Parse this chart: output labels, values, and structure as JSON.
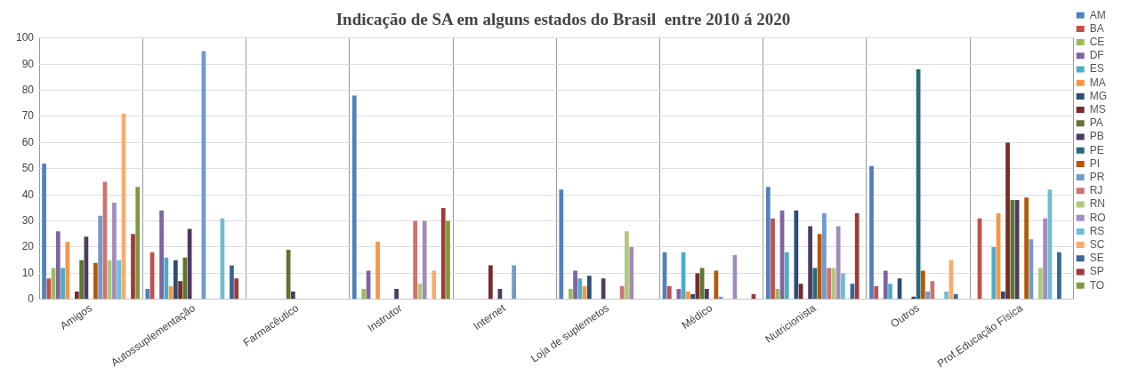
{
  "chart_data": {
    "type": "bar",
    "title": "Indicação de SA em alguns estados do Brasil  entre 2010 á 2020",
    "categories": [
      "Amigos",
      "Autossuplementação",
      "Farmacêutico",
      "Instrutor",
      "Internet",
      "Loja de suplemetos",
      "Médico",
      "Nutricionista",
      "Outros",
      "Prof.Educação Física"
    ],
    "ylim": [
      0,
      100
    ],
    "yticks": [
      0,
      10,
      20,
      30,
      40,
      50,
      60,
      70,
      80,
      90,
      100
    ],
    "grid": true,
    "legend": "right",
    "series": [
      {
        "name": "AM",
        "color": "#4f81bd",
        "values": [
          52,
          4,
          0,
          78,
          0,
          42,
          18,
          43,
          51,
          0
        ]
      },
      {
        "name": "BA",
        "color": "#c0504d",
        "values": [
          8,
          18,
          0,
          0,
          0,
          0,
          5,
          31,
          5,
          31
        ]
      },
      {
        "name": "CE",
        "color": "#9bbb59",
        "values": [
          12,
          0,
          0,
          4,
          0,
          4,
          0,
          4,
          0,
          0
        ]
      },
      {
        "name": "DF",
        "color": "#8064a2",
        "values": [
          26,
          34,
          0,
          11,
          0,
          11,
          4,
          34,
          11,
          0
        ]
      },
      {
        "name": "ES",
        "color": "#4bacc6",
        "values": [
          12,
          16,
          0,
          0,
          0,
          8,
          18,
          18,
          6,
          20
        ]
      },
      {
        "name": "MA",
        "color": "#f79646",
        "values": [
          22,
          5,
          0,
          22,
          0,
          5,
          3,
          0,
          0,
          33
        ]
      },
      {
        "name": "MG",
        "color": "#2c4d75",
        "values": [
          0,
          15,
          0,
          0,
          0,
          9,
          2,
          34,
          8,
          3
        ]
      },
      {
        "name": "MS",
        "color": "#772c2a",
        "values": [
          3,
          7,
          0,
          0,
          13,
          0,
          10,
          6,
          0,
          60
        ]
      },
      {
        "name": "PA",
        "color": "#5f7530",
        "values": [
          15,
          16,
          19,
          0,
          0,
          0,
          12,
          0,
          0,
          38
        ]
      },
      {
        "name": "PB",
        "color": "#4d3b62",
        "values": [
          24,
          27,
          3,
          4,
          4,
          8,
          4,
          28,
          1,
          38
        ]
      },
      {
        "name": "PE",
        "color": "#276a7c",
        "values": [
          0,
          0,
          0,
          0,
          0,
          0,
          0,
          12,
          88,
          0
        ]
      },
      {
        "name": "PI",
        "color": "#b65708",
        "values": [
          14,
          0,
          0,
          0,
          0,
          0,
          11,
          25,
          11,
          39
        ]
      },
      {
        "name": "PR",
        "color": "#729aca",
        "values": [
          32,
          95,
          0,
          0,
          13,
          0,
          1,
          33,
          3,
          23
        ]
      },
      {
        "name": "RJ",
        "color": "#cd7371",
        "values": [
          45,
          0,
          0,
          30,
          0,
          5,
          0,
          12,
          7,
          0
        ]
      },
      {
        "name": "RN",
        "color": "#afc97a",
        "values": [
          15,
          0,
          0,
          6,
          0,
          26,
          0,
          12,
          0,
          12
        ]
      },
      {
        "name": "RO",
        "color": "#a18cbb",
        "values": [
          37,
          0,
          0,
          30,
          0,
          20,
          17,
          28,
          0,
          31
        ]
      },
      {
        "name": "RS",
        "color": "#6fbdd3",
        "values": [
          15,
          31,
          0,
          0,
          0,
          0,
          0,
          10,
          3,
          42
        ]
      },
      {
        "name": "SC",
        "color": "#f9ab6b",
        "values": [
          71,
          0,
          0,
          11,
          0,
          0,
          0,
          0,
          15,
          0
        ]
      },
      {
        "name": "SE",
        "color": "#3a6595",
        "values": [
          0,
          13,
          0,
          0,
          0,
          0,
          0,
          6,
          2,
          18
        ]
      },
      {
        "name": "SP",
        "color": "#9d3b38",
        "values": [
          25,
          8,
          0,
          35,
          0,
          0,
          2,
          33,
          0,
          0
        ]
      },
      {
        "name": "TO",
        "color": "#7e9a40",
        "values": [
          43,
          0,
          0,
          30,
          0,
          0,
          0,
          0,
          0,
          0
        ]
      }
    ]
  }
}
